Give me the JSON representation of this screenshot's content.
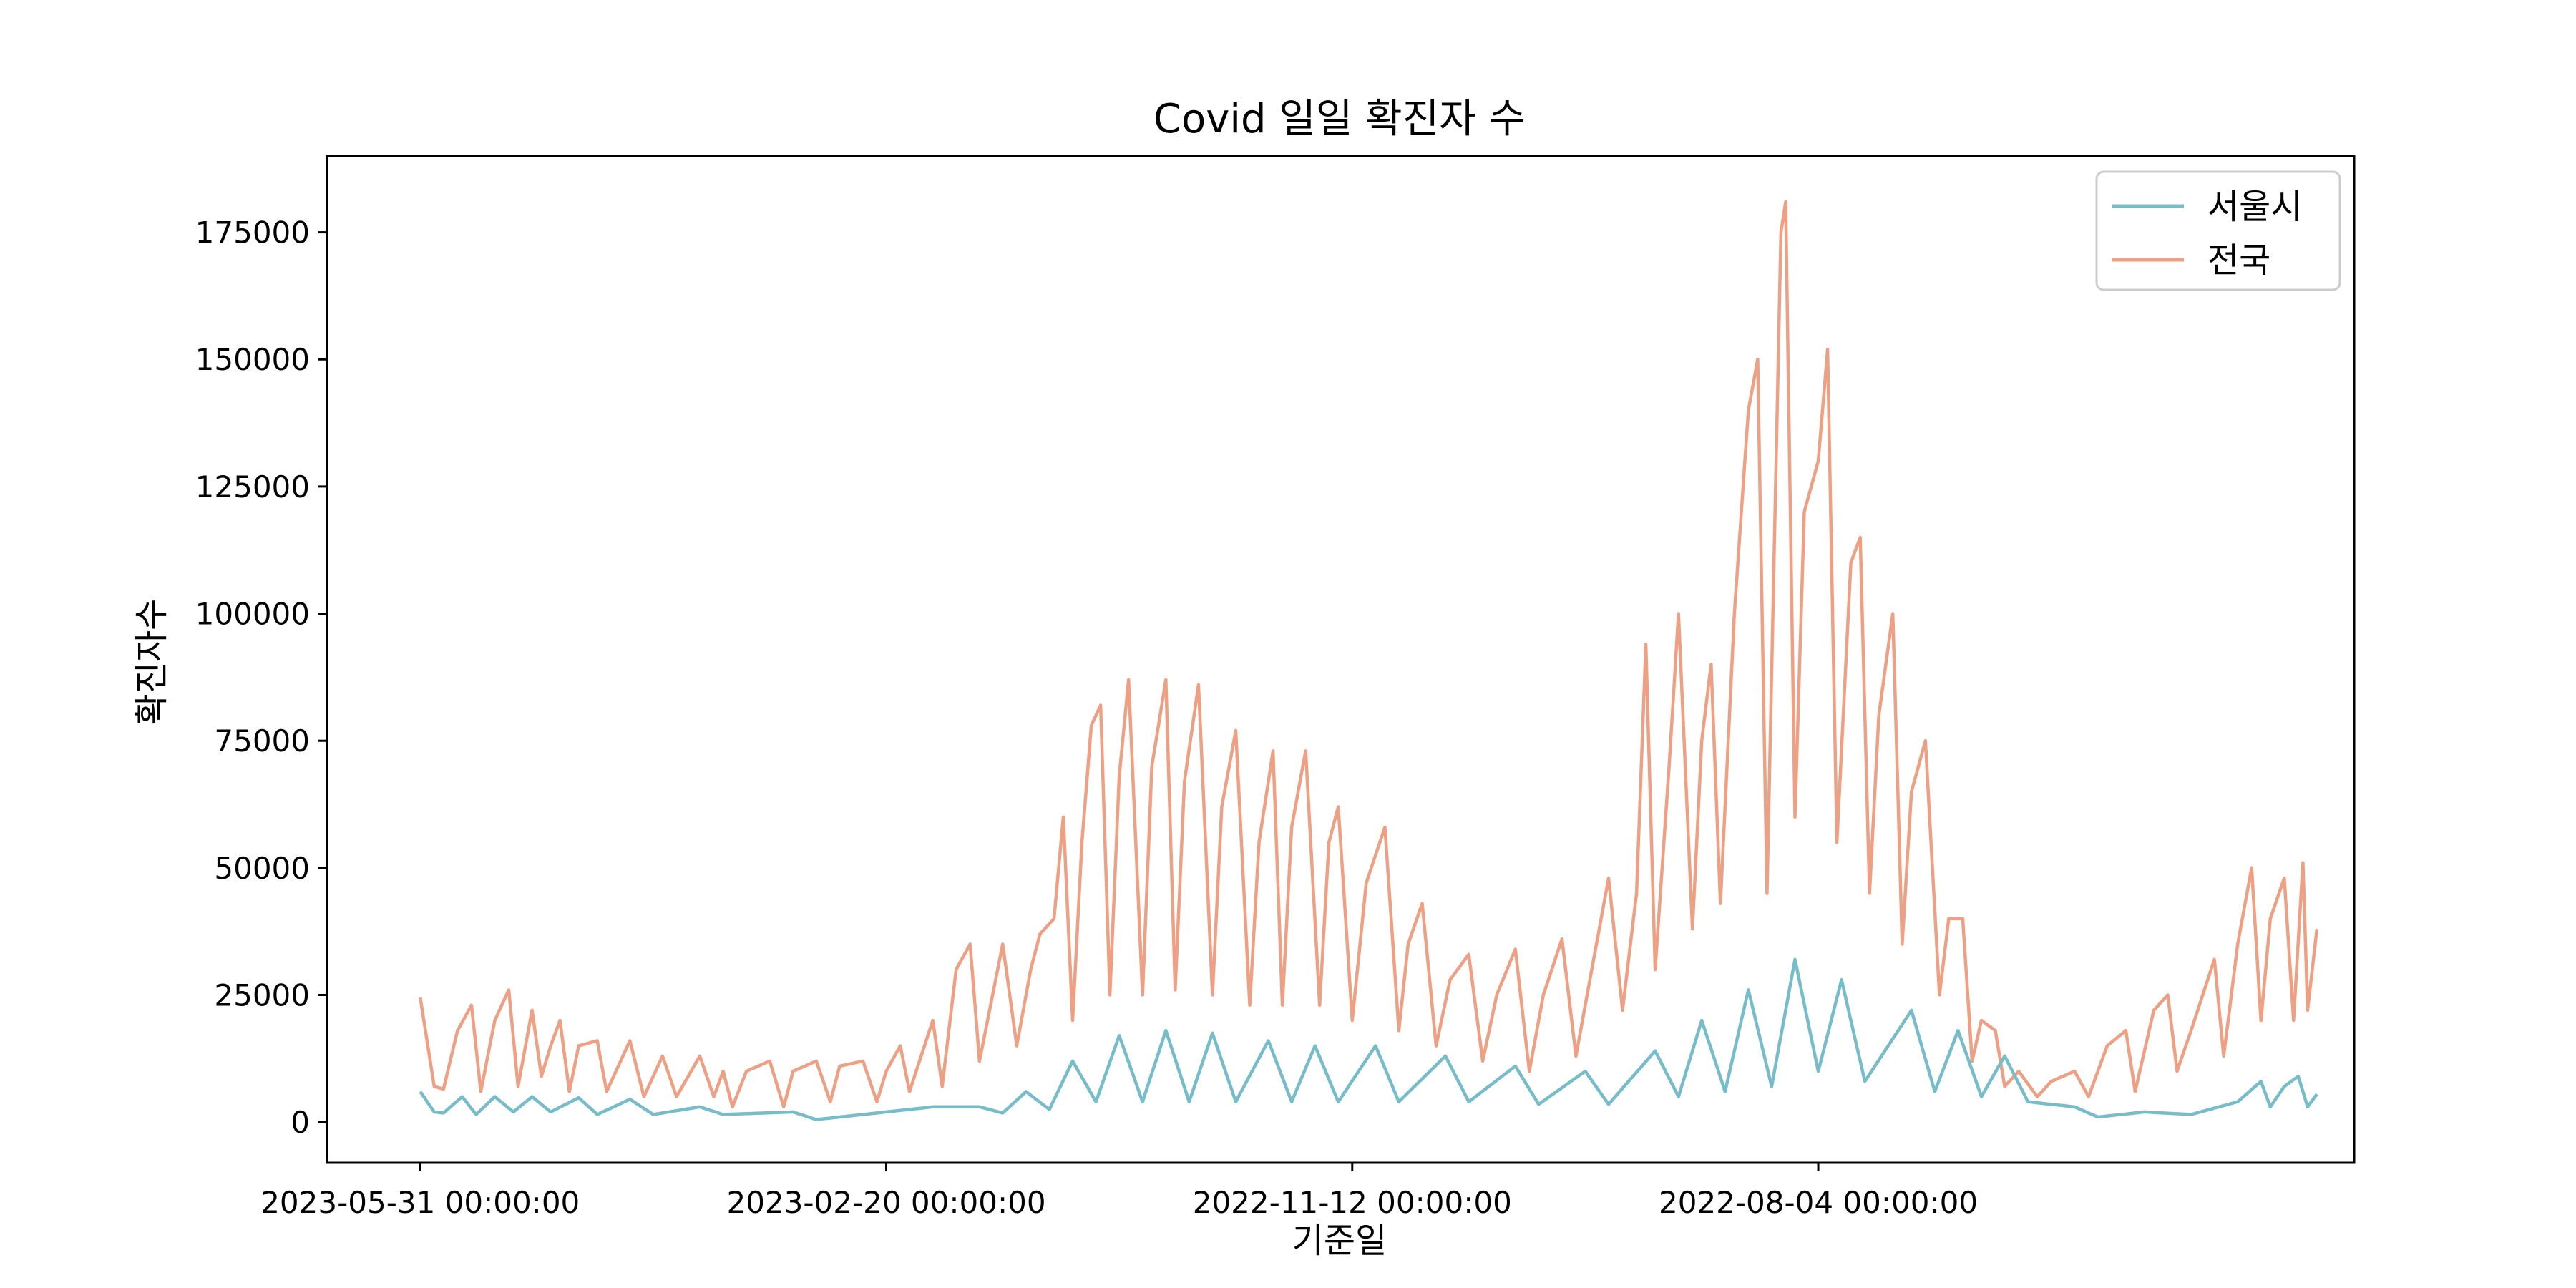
{
  "chart_data": {
    "type": "line",
    "title": "Covid 일일 확진자 수",
    "xlabel": "기준일",
    "ylabel": "확진자수",
    "x_tick_labels": [
      "2023-05-31 00:00:00",
      "2023-02-20 00:00:00",
      "2022-11-12 00:00:00",
      "2022-08-04 00:00:00"
    ],
    "x_tick_index": [
      0,
      100,
      200,
      300
    ],
    "y_ticks": [
      0,
      25000,
      50000,
      75000,
      100000,
      125000,
      150000,
      175000
    ],
    "ylim": [
      -8000,
      190000
    ],
    "xlim": [
      -20,
      415
    ],
    "grid": false,
    "legend_position": "top-right",
    "series": [
      {
        "name": "서울시",
        "color": "#76bdc9",
        "anchors": [
          [
            0,
            6000
          ],
          [
            3,
            2000
          ],
          [
            5,
            1800
          ],
          [
            9,
            5000
          ],
          [
            12,
            1500
          ],
          [
            16,
            5000
          ],
          [
            20,
            2000
          ],
          [
            24,
            5000
          ],
          [
            28,
            2000
          ],
          [
            34,
            4800
          ],
          [
            38,
            1500
          ],
          [
            45,
            4500
          ],
          [
            50,
            1500
          ],
          [
            60,
            3000
          ],
          [
            65,
            1500
          ],
          [
            80,
            2000
          ],
          [
            85,
            500
          ],
          [
            100,
            2000
          ],
          [
            110,
            3000
          ],
          [
            120,
            3000
          ],
          [
            125,
            1800
          ],
          [
            130,
            6000
          ],
          [
            135,
            2500
          ],
          [
            140,
            12000
          ],
          [
            145,
            4000
          ],
          [
            150,
            17000
          ],
          [
            155,
            4000
          ],
          [
            160,
            18000
          ],
          [
            165,
            4000
          ],
          [
            170,
            17500
          ],
          [
            175,
            4000
          ],
          [
            182,
            16000
          ],
          [
            187,
            4000
          ],
          [
            192,
            15000
          ],
          [
            197,
            4000
          ],
          [
            205,
            15000
          ],
          [
            210,
            4000
          ],
          [
            220,
            13000
          ],
          [
            225,
            4000
          ],
          [
            235,
            11000
          ],
          [
            240,
            3500
          ],
          [
            250,
            10000
          ],
          [
            255,
            3500
          ],
          [
            265,
            14000
          ],
          [
            270,
            5000
          ],
          [
            275,
            20000
          ],
          [
            280,
            6000
          ],
          [
            285,
            26000
          ],
          [
            290,
            7000
          ],
          [
            295,
            32000
          ],
          [
            300,
            10000
          ],
          [
            305,
            28000
          ],
          [
            310,
            8000
          ],
          [
            320,
            22000
          ],
          [
            325,
            6000
          ],
          [
            330,
            18000
          ],
          [
            335,
            5000
          ],
          [
            340,
            13000
          ],
          [
            345,
            4000
          ],
          [
            355,
            3000
          ],
          [
            360,
            1000
          ],
          [
            370,
            2000
          ],
          [
            380,
            1500
          ],
          [
            390,
            4000
          ],
          [
            395,
            8000
          ],
          [
            397,
            3000
          ],
          [
            400,
            7000
          ],
          [
            403,
            9000
          ],
          [
            405,
            3000
          ],
          [
            407,
            5500
          ]
        ]
      },
      {
        "name": "전국",
        "color": "#eda084",
        "anchors": [
          [
            0,
            24500
          ],
          [
            3,
            7000
          ],
          [
            5,
            6500
          ],
          [
            8,
            18000
          ],
          [
            11,
            23000
          ],
          [
            13,
            6000
          ],
          [
            16,
            20000
          ],
          [
            19,
            26000
          ],
          [
            21,
            7000
          ],
          [
            24,
            22000
          ],
          [
            26,
            9000
          ],
          [
            28,
            15000
          ],
          [
            30,
            20000
          ],
          [
            32,
            6000
          ],
          [
            34,
            15000
          ],
          [
            38,
            16000
          ],
          [
            40,
            6000
          ],
          [
            45,
            16000
          ],
          [
            48,
            5000
          ],
          [
            52,
            13000
          ],
          [
            55,
            5000
          ],
          [
            60,
            13000
          ],
          [
            63,
            5000
          ],
          [
            65,
            10000
          ],
          [
            67,
            3000
          ],
          [
            70,
            10000
          ],
          [
            75,
            12000
          ],
          [
            78,
            3000
          ],
          [
            80,
            10000
          ],
          [
            85,
            12000
          ],
          [
            88,
            4000
          ],
          [
            90,
            11000
          ],
          [
            95,
            12000
          ],
          [
            98,
            4000
          ],
          [
            100,
            10000
          ],
          [
            103,
            15000
          ],
          [
            105,
            6000
          ],
          [
            110,
            20000
          ],
          [
            112,
            7000
          ],
          [
            115,
            30000
          ],
          [
            118,
            35000
          ],
          [
            120,
            12000
          ],
          [
            125,
            35000
          ],
          [
            128,
            15000
          ],
          [
            131,
            30000
          ],
          [
            133,
            37000
          ],
          [
            136,
            40000
          ],
          [
            138,
            60000
          ],
          [
            140,
            20000
          ],
          [
            142,
            55000
          ],
          [
            144,
            78000
          ],
          [
            146,
            82000
          ],
          [
            148,
            25000
          ],
          [
            150,
            68000
          ],
          [
            152,
            87000
          ],
          [
            155,
            25000
          ],
          [
            157,
            70000
          ],
          [
            160,
            87000
          ],
          [
            162,
            26000
          ],
          [
            164,
            67000
          ],
          [
            167,
            86000
          ],
          [
            170,
            25000
          ],
          [
            172,
            62000
          ],
          [
            175,
            77000
          ],
          [
            178,
            23000
          ],
          [
            180,
            55000
          ],
          [
            183,
            73000
          ],
          [
            185,
            23000
          ],
          [
            187,
            58000
          ],
          [
            190,
            73000
          ],
          [
            193,
            23000
          ],
          [
            195,
            55000
          ],
          [
            197,
            62000
          ],
          [
            200,
            20000
          ],
          [
            203,
            47000
          ],
          [
            207,
            58000
          ],
          [
            210,
            18000
          ],
          [
            212,
            35000
          ],
          [
            215,
            43000
          ],
          [
            218,
            15000
          ],
          [
            221,
            28000
          ],
          [
            225,
            33000
          ],
          [
            228,
            12000
          ],
          [
            231,
            25000
          ],
          [
            235,
            34000
          ],
          [
            238,
            10000
          ],
          [
            241,
            25000
          ],
          [
            245,
            36000
          ],
          [
            248,
            13000
          ],
          [
            251,
            28000
          ],
          [
            255,
            48000
          ],
          [
            258,
            22000
          ],
          [
            261,
            45000
          ],
          [
            263,
            94000
          ],
          [
            265,
            30000
          ],
          [
            268,
            70000
          ],
          [
            270,
            100000
          ],
          [
            273,
            38000
          ],
          [
            275,
            75000
          ],
          [
            277,
            90000
          ],
          [
            279,
            43000
          ],
          [
            282,
            100000
          ],
          [
            285,
            140000
          ],
          [
            287,
            150000
          ],
          [
            289,
            45000
          ],
          [
            292,
            175000
          ],
          [
            293,
            181000
          ],
          [
            295,
            60000
          ],
          [
            297,
            120000
          ],
          [
            300,
            130000
          ],
          [
            302,
            152000
          ],
          [
            304,
            55000
          ],
          [
            307,
            110000
          ],
          [
            309,
            115000
          ],
          [
            311,
            45000
          ],
          [
            313,
            80000
          ],
          [
            316,
            100000
          ],
          [
            318,
            35000
          ],
          [
            320,
            65000
          ],
          [
            323,
            75000
          ],
          [
            326,
            25000
          ],
          [
            328,
            40000
          ],
          [
            331,
            40000
          ],
          [
            333,
            12000
          ],
          [
            335,
            20000
          ],
          [
            338,
            18000
          ],
          [
            340,
            7000
          ],
          [
            343,
            10000
          ],
          [
            347,
            5000
          ],
          [
            350,
            8000
          ],
          [
            355,
            10000
          ],
          [
            358,
            5000
          ],
          [
            362,
            15000
          ],
          [
            366,
            18000
          ],
          [
            368,
            6000
          ],
          [
            372,
            22000
          ],
          [
            375,
            25000
          ],
          [
            377,
            10000
          ],
          [
            380,
            18000
          ],
          [
            385,
            32000
          ],
          [
            387,
            13000
          ],
          [
            390,
            35000
          ],
          [
            393,
            50000
          ],
          [
            395,
            20000
          ],
          [
            397,
            40000
          ],
          [
            400,
            48000
          ],
          [
            402,
            20000
          ],
          [
            404,
            51000
          ],
          [
            405,
            22000
          ],
          [
            407,
            38000
          ]
        ],
        "gap_at": []
      }
    ]
  }
}
